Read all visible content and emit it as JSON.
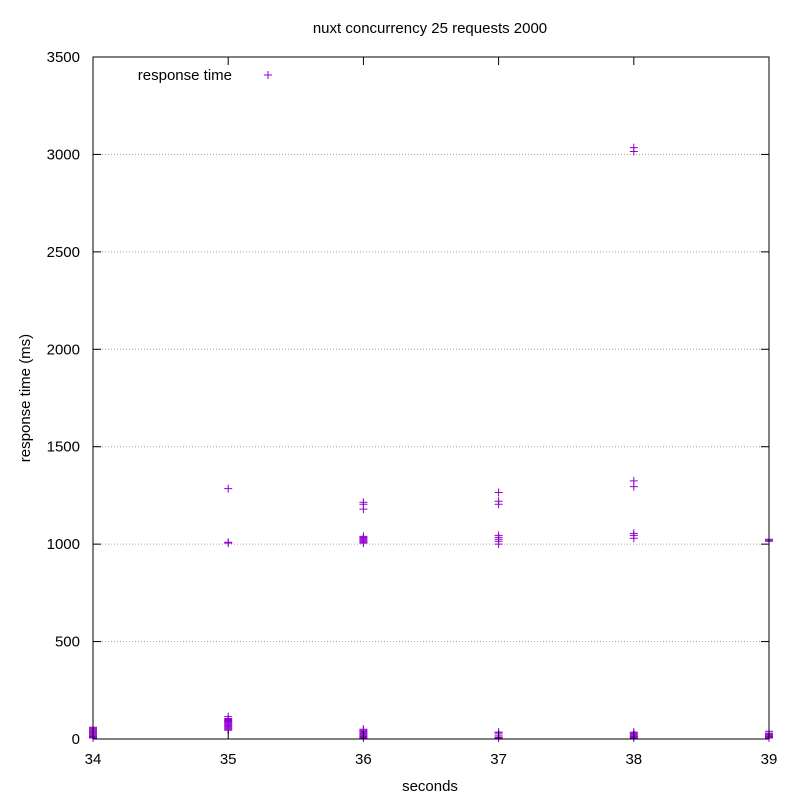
{
  "chart_data": {
    "type": "scatter",
    "title": "nuxt concurrency 25 requests 2000",
    "xlabel": "seconds",
    "ylabel": "response time (ms)",
    "xlim": [
      34,
      39
    ],
    "ylim": [
      0,
      3500
    ],
    "xticks": [
      34,
      35,
      36,
      37,
      38,
      39
    ],
    "yticks": [
      0,
      500,
      1000,
      1500,
      2000,
      2500,
      3000,
      3500
    ],
    "grid": "horizontal dotted",
    "legend_position": "top-left",
    "colors": {
      "series": "#9400d3",
      "grid": "#a0a0a0",
      "frame": "#000000"
    },
    "marker": "plus",
    "series": [
      {
        "name": "response time",
        "points": [
          [
            34,
            5
          ],
          [
            34,
            10
          ],
          [
            34,
            15
          ],
          [
            34,
            20
          ],
          [
            34,
            25
          ],
          [
            34,
            30
          ],
          [
            34,
            35
          ],
          [
            34,
            40
          ],
          [
            34,
            45
          ],
          [
            34,
            50
          ],
          [
            34,
            55
          ],
          [
            34,
            60
          ],
          [
            35,
            45
          ],
          [
            35,
            50
          ],
          [
            35,
            55
          ],
          [
            35,
            60
          ],
          [
            35,
            65
          ],
          [
            35,
            70
          ],
          [
            35,
            75
          ],
          [
            35,
            80
          ],
          [
            35,
            85
          ],
          [
            35,
            90
          ],
          [
            35,
            95
          ],
          [
            35,
            100
          ],
          [
            35,
            105
          ],
          [
            35,
            115
          ],
          [
            35,
            1005
          ],
          [
            35,
            1010
          ],
          [
            35,
            1285
          ],
          [
            36,
            5
          ],
          [
            36,
            10
          ],
          [
            36,
            15
          ],
          [
            36,
            20
          ],
          [
            36,
            25
          ],
          [
            36,
            30
          ],
          [
            36,
            35
          ],
          [
            36,
            40
          ],
          [
            36,
            45
          ],
          [
            36,
            50
          ],
          [
            36,
            1005
          ],
          [
            36,
            1010
          ],
          [
            36,
            1015
          ],
          [
            36,
            1020
          ],
          [
            36,
            1025
          ],
          [
            36,
            1030
          ],
          [
            36,
            1035
          ],
          [
            36,
            1040
          ],
          [
            36,
            1180
          ],
          [
            36,
            1205
          ],
          [
            36,
            1215
          ],
          [
            37,
            5
          ],
          [
            37,
            10
          ],
          [
            37,
            20
          ],
          [
            37,
            30
          ],
          [
            37,
            35
          ],
          [
            37,
            1000
          ],
          [
            37,
            1015
          ],
          [
            37,
            1025
          ],
          [
            37,
            1035
          ],
          [
            37,
            1045
          ],
          [
            37,
            1205
          ],
          [
            37,
            1220
          ],
          [
            37,
            1265
          ],
          [
            38,
            5
          ],
          [
            38,
            10
          ],
          [
            38,
            15
          ],
          [
            38,
            20
          ],
          [
            38,
            25
          ],
          [
            38,
            30
          ],
          [
            38,
            35
          ],
          [
            38,
            1030
          ],
          [
            38,
            1045
          ],
          [
            38,
            1055
          ],
          [
            38,
            1295
          ],
          [
            38,
            1325
          ],
          [
            38,
            3015
          ],
          [
            38,
            3035
          ],
          [
            39,
            5
          ],
          [
            39,
            10
          ],
          [
            39,
            15
          ],
          [
            39,
            20
          ],
          [
            39,
            25
          ],
          [
            39,
            30
          ],
          [
            39,
            40
          ],
          [
            39,
            1015
          ],
          [
            39,
            1020
          ],
          [
            39,
            1025
          ]
        ]
      }
    ]
  }
}
